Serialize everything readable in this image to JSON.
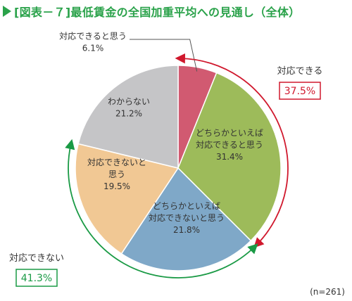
{
  "title": "[図表－７]最低賃金の全国加重平均への見通し（全体）",
  "note": "(n=261)",
  "colors": {
    "accent": "#2aa24a",
    "respond": "#d0182d",
    "not_respond": "#1a9a45"
  },
  "groups": [
    {
      "label": "対応できる",
      "value": "37.5%"
    },
    {
      "label": "対応できない",
      "value": "41.3%"
    }
  ],
  "chart_data": {
    "type": "pie",
    "start_angle_deg": 0,
    "direction": "clockwise",
    "slices": [
      {
        "label_lines": [
          "対応できると思う"
        ],
        "value": 6.1,
        "value_text": "6.1%",
        "color": "#d15a71"
      },
      {
        "label_lines": [
          "どちらかといえば",
          "対応できると思う"
        ],
        "value": 31.4,
        "value_text": "31.4%",
        "color": "#9dbb5a"
      },
      {
        "label_lines": [
          "どちらかといえば",
          "対応できないと思う"
        ],
        "value": 21.8,
        "value_text": "21.8%",
        "color": "#7fa8c8"
      },
      {
        "label_lines": [
          "対応できないと",
          "思う"
        ],
        "value": 19.5,
        "value_text": "19.5%",
        "color": "#f1c894"
      },
      {
        "label_lines": [
          "わからない"
        ],
        "value": 21.2,
        "value_text": "21.2%",
        "color": "#c5c5c7"
      }
    ]
  }
}
